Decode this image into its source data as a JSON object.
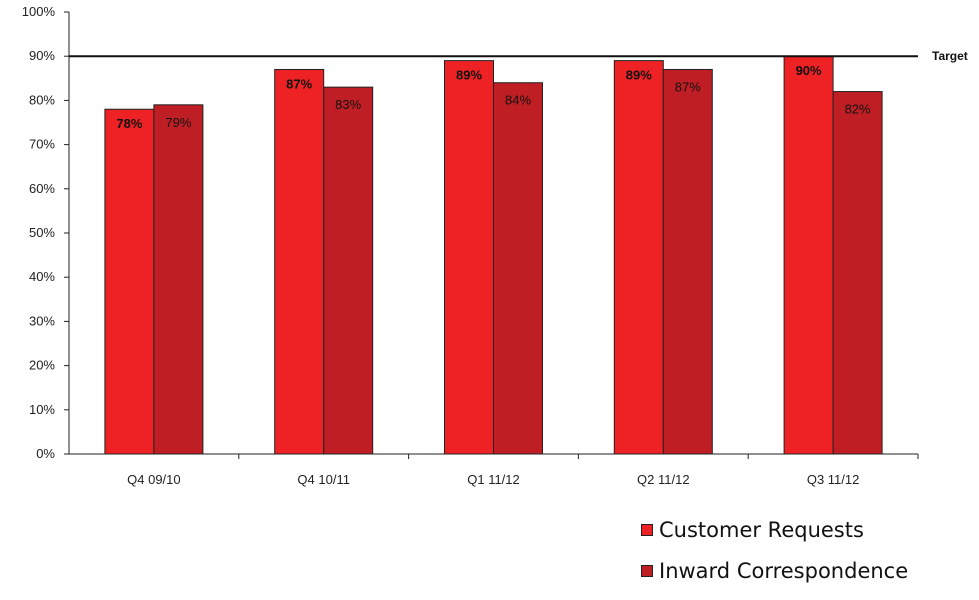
{
  "chart_data": {
    "type": "bar",
    "categories": [
      "Q4 09/10",
      "Q4 10/11",
      "Q1 11/12",
      "Q2 11/12",
      "Q3 11/12"
    ],
    "series": [
      {
        "name": "Customer Requests",
        "values": [
          78,
          87,
          89,
          89,
          90
        ],
        "labels": [
          "78%",
          "87%",
          "89%",
          "89%",
          "90%"
        ],
        "color": "#ee2224"
      },
      {
        "name": "Inward Correspondence",
        "values": [
          79,
          83,
          84,
          87,
          82
        ],
        "labels": [
          "79%",
          "83%",
          "84%",
          "87%",
          "82%"
        ],
        "color": "#bf1e24"
      }
    ],
    "ylim": [
      0,
      100
    ],
    "yticks": [
      "0%",
      "10%",
      "20%",
      "30%",
      "40%",
      "50%",
      "60%",
      "70%",
      "80%",
      "90%",
      "100%"
    ],
    "target": {
      "value": 90,
      "label": "Target"
    },
    "grid": false,
    "legend_position": "bottom-right",
    "title": "",
    "xlabel": "",
    "ylabel": ""
  }
}
